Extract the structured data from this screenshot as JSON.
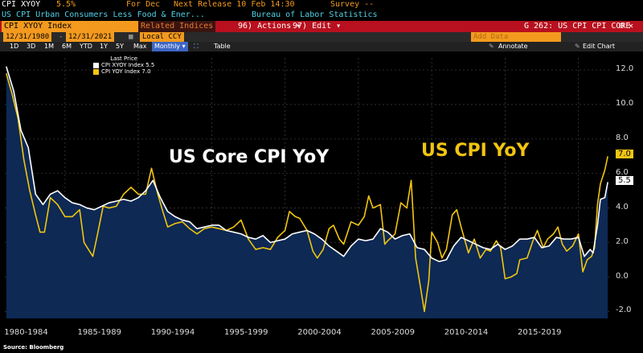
{
  "header": {
    "ticker": "CPI XYOY",
    "ticker_value": "5.5%",
    "period": "For Dec",
    "next_release": "Next Release 10 Feb 14:30",
    "survey": "Survey --",
    "series_desc": "US CPI Urban Consumers Less Food & Ener...",
    "source": "Bureau of Labor Statistics"
  },
  "toolbar": {
    "index_name": "CPI XYOY Index",
    "related": "Related Indices",
    "actions": "96) Actions ▾",
    "edit": "97) Edit ▾",
    "page_code": "G 262: US CPI CPI CORE",
    "page_icons": "⊡ ✕"
  },
  "range": {
    "start": "12/31/1980",
    "end": "12/31/2021",
    "currency": "Local CCY",
    "add_data": "Add Data",
    "annotate": "Annotate",
    "edit_chart": "Edit Chart"
  },
  "periods": [
    "1D",
    "3D",
    "1M",
    "6M",
    "YTD",
    "1Y",
    "5Y",
    "Max"
  ],
  "frequency": "Monthly ▾",
  "table_btn": "Table",
  "legend": {
    "title": "Last Price",
    "items": [
      {
        "label": "CPI XYOY Index 5.5",
        "color": "#ffffff"
      },
      {
        "label": "CPI YOY Index 7.0",
        "color": "#f2c50f"
      }
    ]
  },
  "labels": {
    "core": "US Core CPI YoY",
    "headline": "US CPI YoY"
  },
  "last_tags": {
    "yoy": "7.0",
    "core": "5.5"
  },
  "footer": "Source: Bloomberg",
  "chart_data": {
    "type": "line",
    "x_categories": [
      "1980-1984",
      "1985-1989",
      "1990-1994",
      "1995-1999",
      "2000-2004",
      "2005-2009",
      "2010-2014",
      "2015-2019"
    ],
    "xlim": [
      1980.9,
      2022.1
    ],
    "y_ticks": [
      "12.0",
      "10.0",
      "8.0",
      "6.0",
      "4.0",
      "2.0",
      "0.0",
      "-2.0"
    ],
    "ylim": [
      -2.4,
      12.7
    ],
    "grid": true,
    "series": [
      {
        "name": "CPI XYOY Index",
        "color": "#ffffff",
        "points": [
          [
            1981.0,
            12.2
          ],
          [
            1981.5,
            10.8
          ],
          [
            1982.0,
            8.5
          ],
          [
            1982.5,
            7.5
          ],
          [
            1983.0,
            4.8
          ],
          [
            1983.5,
            4.2
          ],
          [
            1984.0,
            4.8
          ],
          [
            1984.5,
            5.0
          ],
          [
            1985.0,
            4.6
          ],
          [
            1985.5,
            4.3
          ],
          [
            1986.0,
            4.2
          ],
          [
            1986.5,
            4.0
          ],
          [
            1987.0,
            3.9
          ],
          [
            1987.5,
            4.1
          ],
          [
            1988.0,
            4.3
          ],
          [
            1988.5,
            4.4
          ],
          [
            1989.0,
            4.5
          ],
          [
            1989.5,
            4.4
          ],
          [
            1990.0,
            4.6
          ],
          [
            1990.5,
            5.0
          ],
          [
            1991.0,
            5.6
          ],
          [
            1991.5,
            4.6
          ],
          [
            1992.0,
            3.8
          ],
          [
            1992.5,
            3.5
          ],
          [
            1993.0,
            3.3
          ],
          [
            1993.5,
            3.2
          ],
          [
            1994.0,
            2.8
          ],
          [
            1994.5,
            2.9
          ],
          [
            1995.0,
            3.0
          ],
          [
            1995.5,
            3.0
          ],
          [
            1996.0,
            2.7
          ],
          [
            1996.5,
            2.6
          ],
          [
            1997.0,
            2.5
          ],
          [
            1997.5,
            2.3
          ],
          [
            1998.0,
            2.2
          ],
          [
            1998.5,
            2.4
          ],
          [
            1999.0,
            2.0
          ],
          [
            1999.5,
            2.1
          ],
          [
            2000.0,
            2.2
          ],
          [
            2000.5,
            2.5
          ],
          [
            2001.0,
            2.6
          ],
          [
            2001.5,
            2.7
          ],
          [
            2002.0,
            2.5
          ],
          [
            2002.5,
            2.2
          ],
          [
            2003.0,
            1.8
          ],
          [
            2003.5,
            1.5
          ],
          [
            2004.0,
            1.2
          ],
          [
            2004.5,
            1.8
          ],
          [
            2005.0,
            2.2
          ],
          [
            2005.5,
            2.1
          ],
          [
            2006.0,
            2.2
          ],
          [
            2006.5,
            2.8
          ],
          [
            2007.0,
            2.6
          ],
          [
            2007.5,
            2.2
          ],
          [
            2008.0,
            2.4
          ],
          [
            2008.5,
            2.5
          ],
          [
            2009.0,
            1.7
          ],
          [
            2009.5,
            1.6
          ],
          [
            2010.0,
            1.1
          ],
          [
            2010.5,
            0.9
          ],
          [
            2011.0,
            1.0
          ],
          [
            2011.5,
            1.8
          ],
          [
            2012.0,
            2.3
          ],
          [
            2012.5,
            2.1
          ],
          [
            2013.0,
            1.9
          ],
          [
            2013.5,
            1.7
          ],
          [
            2014.0,
            1.6
          ],
          [
            2014.5,
            1.9
          ],
          [
            2015.0,
            1.6
          ],
          [
            2015.5,
            1.8
          ],
          [
            2016.0,
            2.2
          ],
          [
            2016.5,
            2.2
          ],
          [
            2017.0,
            2.3
          ],
          [
            2017.5,
            1.7
          ],
          [
            2018.0,
            1.8
          ],
          [
            2018.5,
            2.3
          ],
          [
            2019.0,
            2.2
          ],
          [
            2019.5,
            2.2
          ],
          [
            2020.0,
            2.3
          ],
          [
            2020.4,
            1.2
          ],
          [
            2020.8,
            1.6
          ],
          [
            2021.0,
            1.4
          ],
          [
            2021.3,
            3.0
          ],
          [
            2021.5,
            4.5
          ],
          [
            2021.8,
            4.6
          ],
          [
            2022.0,
            5.5
          ]
        ]
      },
      {
        "name": "CPI YOY Index",
        "color": "#f2c50f",
        "points": [
          [
            1981.0,
            11.8
          ],
          [
            1981.4,
            10.6
          ],
          [
            1981.8,
            9.2
          ],
          [
            1982.2,
            6.8
          ],
          [
            1982.6,
            5.0
          ],
          [
            1983.0,
            3.6
          ],
          [
            1983.3,
            2.6
          ],
          [
            1983.6,
            2.6
          ],
          [
            1984.0,
            4.6
          ],
          [
            1984.5,
            4.2
          ],
          [
            1985.0,
            3.5
          ],
          [
            1985.5,
            3.5
          ],
          [
            1986.0,
            3.9
          ],
          [
            1986.3,
            2.0
          ],
          [
            1986.6,
            1.6
          ],
          [
            1986.9,
            1.2
          ],
          [
            1987.2,
            2.4
          ],
          [
            1987.6,
            4.1
          ],
          [
            1988.0,
            4.0
          ],
          [
            1988.5,
            4.1
          ],
          [
            1989.0,
            4.8
          ],
          [
            1989.5,
            5.2
          ],
          [
            1990.0,
            4.8
          ],
          [
            1990.5,
            4.8
          ],
          [
            1990.9,
            6.3
          ],
          [
            1991.3,
            4.9
          ],
          [
            1991.6,
            4.0
          ],
          [
            1992.0,
            2.9
          ],
          [
            1992.5,
            3.1
          ],
          [
            1993.0,
            3.2
          ],
          [
            1993.5,
            2.8
          ],
          [
            1994.0,
            2.5
          ],
          [
            1994.5,
            2.8
          ],
          [
            1995.0,
            2.9
          ],
          [
            1995.5,
            2.8
          ],
          [
            1996.0,
            2.7
          ],
          [
            1996.5,
            2.9
          ],
          [
            1997.0,
            3.3
          ],
          [
            1997.5,
            2.2
          ],
          [
            1998.0,
            1.6
          ],
          [
            1998.5,
            1.7
          ],
          [
            1999.0,
            1.6
          ],
          [
            1999.5,
            2.3
          ],
          [
            2000.0,
            2.7
          ],
          [
            2000.3,
            3.8
          ],
          [
            2000.7,
            3.5
          ],
          [
            2001.0,
            3.4
          ],
          [
            2001.5,
            2.7
          ],
          [
            2001.9,
            1.5
          ],
          [
            2002.2,
            1.1
          ],
          [
            2002.6,
            1.6
          ],
          [
            2003.0,
            2.8
          ],
          [
            2003.3,
            3.0
          ],
          [
            2003.7,
            2.2
          ],
          [
            2004.0,
            1.9
          ],
          [
            2004.5,
            3.2
          ],
          [
            2005.0,
            3.0
          ],
          [
            2005.4,
            3.5
          ],
          [
            2005.7,
            4.7
          ],
          [
            2006.0,
            4.0
          ],
          [
            2006.5,
            4.2
          ],
          [
            2006.8,
            1.9
          ],
          [
            2007.0,
            2.1
          ],
          [
            2007.5,
            2.5
          ],
          [
            2007.9,
            4.3
          ],
          [
            2008.3,
            4.0
          ],
          [
            2008.6,
            5.6
          ],
          [
            2008.9,
            1.1
          ],
          [
            2009.2,
            -0.4
          ],
          [
            2009.5,
            -2.0
          ],
          [
            2009.8,
            -0.2
          ],
          [
            2010.0,
            2.6
          ],
          [
            2010.4,
            2.0
          ],
          [
            2010.7,
            1.1
          ],
          [
            2011.0,
            1.6
          ],
          [
            2011.4,
            3.6
          ],
          [
            2011.7,
            3.9
          ],
          [
            2012.0,
            2.9
          ],
          [
            2012.5,
            1.4
          ],
          [
            2012.9,
            2.2
          ],
          [
            2013.3,
            1.1
          ],
          [
            2013.7,
            1.6
          ],
          [
            2014.0,
            1.5
          ],
          [
            2014.4,
            2.1
          ],
          [
            2014.7,
            1.7
          ],
          [
            2015.0,
            -0.1
          ],
          [
            2015.4,
            0.0
          ],
          [
            2015.8,
            0.2
          ],
          [
            2016.0,
            1.0
          ],
          [
            2016.5,
            1.1
          ],
          [
            2016.9,
            2.1
          ],
          [
            2017.2,
            2.7
          ],
          [
            2017.6,
            1.7
          ],
          [
            2017.9,
            2.2
          ],
          [
            2018.3,
            2.5
          ],
          [
            2018.6,
            2.9
          ],
          [
            2018.9,
            1.9
          ],
          [
            2019.2,
            1.5
          ],
          [
            2019.6,
            1.8
          ],
          [
            2020.0,
            2.5
          ],
          [
            2020.3,
            0.3
          ],
          [
            2020.6,
            1.0
          ],
          [
            2020.9,
            1.2
          ],
          [
            2021.1,
            1.7
          ],
          [
            2021.3,
            4.2
          ],
          [
            2021.5,
            5.4
          ],
          [
            2021.8,
            6.2
          ],
          [
            2022.0,
            7.0
          ]
        ]
      }
    ]
  }
}
